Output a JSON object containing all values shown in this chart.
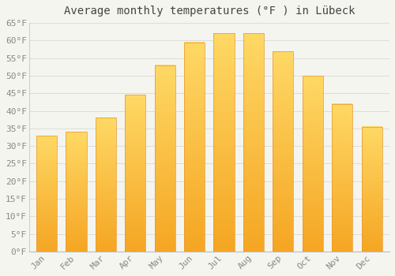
{
  "title": "Average monthly temperatures (°F ) in Lübeck",
  "months": [
    "Jan",
    "Feb",
    "Mar",
    "Apr",
    "May",
    "Jun",
    "Jul",
    "Aug",
    "Sep",
    "Oct",
    "Nov",
    "Dec"
  ],
  "values": [
    33,
    34,
    38,
    44.5,
    53,
    59.5,
    62,
    62,
    57,
    50,
    42,
    35.5
  ],
  "bar_color_top": "#FFD966",
  "bar_color_bottom": "#F5A623",
  "bar_edge_color": "#E8962A",
  "background_color": "#F5F5F0",
  "grid_color": "#D8D8D8",
  "ylim": [
    0,
    65
  ],
  "yticks": [
    0,
    5,
    10,
    15,
    20,
    25,
    30,
    35,
    40,
    45,
    50,
    55,
    60,
    65
  ],
  "tick_label_color": "#888888",
  "title_color": "#444444",
  "title_fontsize": 10,
  "axis_label_fontsize": 8,
  "bar_width": 0.7
}
